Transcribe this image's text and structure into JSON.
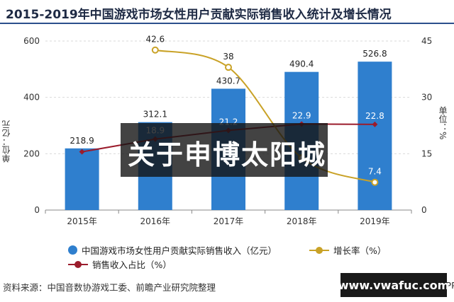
{
  "title": "2015-2019年中国游戏市场女性用户贡献实际销售收入统计及增长情况",
  "y_left_label": "单位：亿元",
  "y_right_label": "单位：%",
  "legend": {
    "revenue": "中国游戏市场女性用户贡献实际销售收入（亿元）",
    "growth": "增长率（%）",
    "share": "销售收入占比（%）"
  },
  "source": "资料来源：中国音数协游戏工委、前瞻产业研究院整理",
  "source_tail": "APP",
  "overlay_text": "关于申博太阳城",
  "watermark_url": "www.vwafuc.com",
  "colors": {
    "bar": "#2f7fce",
    "growth": "#c9a227",
    "share": "#9b1c2c",
    "grid": "#d9d9d9"
  },
  "chart_data": {
    "type": "bar",
    "categories": [
      "2015年",
      "2016年",
      "2017年",
      "2018年",
      "2019年"
    ],
    "series": [
      {
        "name": "中国游戏市场女性用户贡献实际销售收入（亿元）",
        "type": "bar",
        "axis": "left",
        "values": [
          218.9,
          312.1,
          430.7,
          490.4,
          526.8
        ],
        "labels": [
          "218.9",
          "312.1",
          "430.7",
          "490.4",
          "526.8"
        ]
      },
      {
        "name": "增长率（%）",
        "type": "line",
        "axis": "right",
        "values": [
          null,
          42.6,
          38,
          13.9,
          7.4
        ],
        "labels": [
          "",
          "42.6",
          "38",
          "",
          "7.4"
        ]
      },
      {
        "name": "销售收入占比（%）",
        "type": "line",
        "axis": "right",
        "values": [
          15.5,
          18.9,
          21.2,
          22.9,
          22.8
        ],
        "labels": [
          "",
          "18.9",
          "21.2",
          "22.9",
          "22.8"
        ]
      }
    ],
    "ylim_left": [
      0,
      600
    ],
    "yticks_left": [
      "0",
      "200",
      "400",
      "600"
    ],
    "ylim_right": [
      0,
      45
    ],
    "yticks_right": [
      "0",
      "15",
      "30",
      "45"
    ],
    "grid": true,
    "legend_position": "bottom"
  }
}
